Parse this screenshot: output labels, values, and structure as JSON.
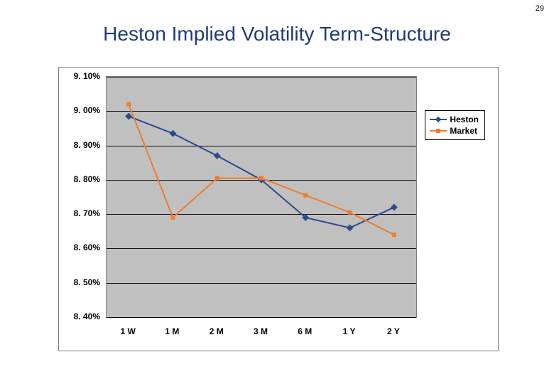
{
  "page_number": "29",
  "title": "Heston Implied Volatility Term-Structure",
  "title_color": "#1f3b7a",
  "title_fontsize": 28,
  "chart": {
    "type": "line",
    "background_color": "#ffffff",
    "plot_background_color": "#c0c0c0",
    "border_color": "#7f7f7f",
    "grid_color": "#000000",
    "categories": [
      "1 W",
      "1 M",
      "2 M",
      "3 M",
      "6 M",
      "1 Y",
      "2 Y"
    ],
    "ylim": [
      8.4,
      9.1
    ],
    "ytick_step": 0.1,
    "ytick_labels": [
      "8. 40%",
      "8. 50%",
      "8. 60%",
      "8. 70%",
      "8. 80%",
      "8. 90%",
      "9. 00%",
      "9. 10%"
    ],
    "xlabel_fontsize": 12,
    "ylabel_fontsize": 12,
    "label_fontweight": "bold",
    "series": [
      {
        "name": "Heston",
        "color": "#2a4b8d",
        "marker": "diamond",
        "marker_size": 7,
        "line_width": 2,
        "values": [
          8.985,
          8.935,
          8.87,
          8.8,
          8.69,
          8.66,
          8.72
        ]
      },
      {
        "name": "Market",
        "color": "#ed7d31",
        "marker": "square",
        "marker_size": 6,
        "line_width": 2,
        "values": [
          9.02,
          8.69,
          8.805,
          8.805,
          8.755,
          8.705,
          8.64
        ]
      }
    ],
    "legend": {
      "position": "right-top-inside",
      "background": "#ffffff",
      "border_color": "#000000",
      "fontsize": 12,
      "fontweight": "bold"
    }
  }
}
